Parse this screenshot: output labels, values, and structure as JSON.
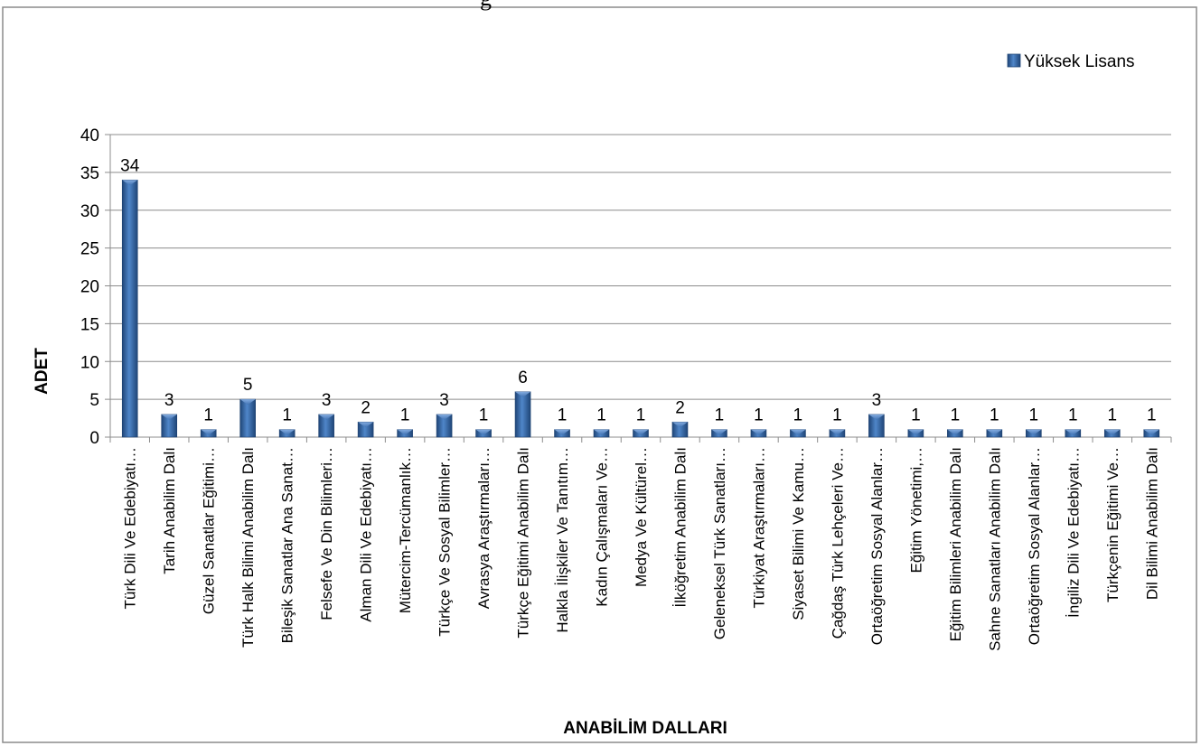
{
  "chart_data": {
    "type": "bar",
    "title": "",
    "xlabel": "ANABİLİM DALLARI",
    "ylabel": "ADET",
    "ylim": [
      0,
      40
    ],
    "yticks": [
      0,
      5,
      10,
      15,
      20,
      25,
      30,
      35,
      40
    ],
    "grid": true,
    "legend_position": "top-right",
    "bar_color": "#2E5F9E",
    "categories": [
      "Türk Dili Ve Edebiyatı…",
      "Tarih Anabilim Dalı",
      "Güzel Sanatlar Eğitimi…",
      "Türk Halk Bilimi Anabilim Dalı",
      "Bileşik Sanatlar Ana Sanat…",
      "Felsefe Ve Din Bilimleri…",
      "Alman Dili Ve Edebiyatı…",
      "Mütercim-Tercümanlık…",
      "Türkçe Ve Sosyal Bilimler…",
      "Avrasya Araştırmaları…",
      "Türkçe Eğitimi Anabilim Dalı",
      "Halkla İlişkiler Ve Tanıtım…",
      "Kadın Çalışmaları Ve…",
      "Medya Ve Kültürel…",
      "İlköğretim Anabilim Dalı",
      "Geleneksel Türk Sanatları…",
      "Türkiyat Araştırmaları…",
      "Siyaset Bilimi Ve Kamu…",
      "Çağdaş Türk Lehçeleri Ve…",
      "Ortaöğretim Sosyal Alanlar…",
      "Eğitim Yönetimi,…",
      "Eğitim Bilimleri Anabilim Dalı",
      "Sahne Sanatları Anabilim Dalı",
      "Ortaöğretim Sosyal Alanlar…",
      "İngiliz Dili Ve Edebiyatı…",
      "Türkçenin Eğitimi Ve…",
      "Dil Bilimi Anabilim Dalı"
    ],
    "series": [
      {
        "name": "Yüksek Lisans",
        "values": [
          34,
          3,
          1,
          5,
          1,
          3,
          2,
          1,
          3,
          1,
          6,
          1,
          1,
          1,
          2,
          1,
          1,
          1,
          1,
          3,
          1,
          1,
          1,
          1,
          1,
          1,
          1
        ]
      }
    ]
  }
}
